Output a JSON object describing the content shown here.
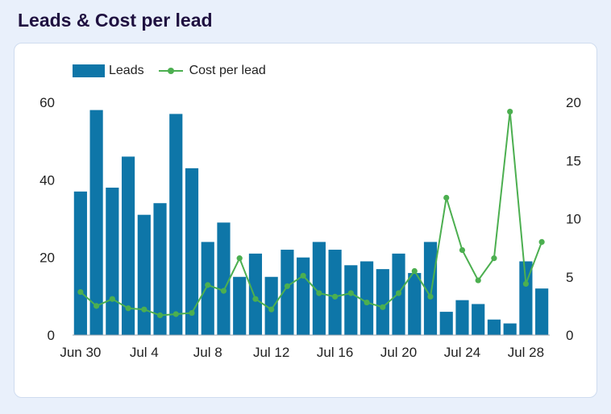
{
  "title": "Leads & Cost per lead",
  "chart_data": {
    "type": "bar+line",
    "categories": [
      "Jun 30",
      "Jul 1",
      "Jul 2",
      "Jul 3",
      "Jul 4",
      "Jul 5",
      "Jul 6",
      "Jul 7",
      "Jul 8",
      "Jul 9",
      "Jul 10",
      "Jul 11",
      "Jul 12",
      "Jul 13",
      "Jul 14",
      "Jul 15",
      "Jul 16",
      "Jul 17",
      "Jul 18",
      "Jul 19",
      "Jul 20",
      "Jul 21",
      "Jul 22",
      "Jul 23",
      "Jul 24",
      "Jul 25",
      "Jul 26",
      "Jul 27",
      "Jul 28",
      "Jul 29"
    ],
    "x_tick_labels": [
      "Jun 30",
      "Jul 4",
      "Jul 8",
      "Jul 12",
      "Jul 16",
      "Jul 20",
      "Jul 24",
      "Jul 28"
    ],
    "x_tick_indices": [
      0,
      4,
      8,
      12,
      16,
      20,
      24,
      28
    ],
    "series": [
      {
        "name": "Leads",
        "type": "bar",
        "axis": "left",
        "color": "#0e76a8",
        "values": [
          37,
          58,
          38,
          46,
          31,
          34,
          57,
          43,
          24,
          29,
          15,
          21,
          15,
          22,
          20,
          24,
          22,
          18,
          19,
          17,
          21,
          16,
          24,
          6,
          9,
          8,
          4,
          3,
          19,
          12
        ]
      },
      {
        "name": "Cost per lead",
        "type": "line",
        "axis": "right",
        "color": "#4caf50",
        "values": [
          3.7,
          2.5,
          3.1,
          2.3,
          2.2,
          1.7,
          1.8,
          1.9,
          4.3,
          3.8,
          6.6,
          3.1,
          2.2,
          4.2,
          5.1,
          3.6,
          3.3,
          3.6,
          2.8,
          2.4,
          3.6,
          5.5,
          3.3,
          11.8,
          7.3,
          4.7,
          6.6,
          19.2,
          4.4,
          8.0
        ]
      }
    ],
    "y_left": {
      "min": 0,
      "max": 60,
      "ticks": [
        0,
        20,
        40,
        60
      ]
    },
    "y_right": {
      "min": 0,
      "max": 20,
      "ticks": [
        0,
        5,
        10,
        15,
        20
      ]
    },
    "legend_position": "top-left"
  },
  "legend": {
    "leads_label": "Leads",
    "cpl_label": "Cost per lead"
  }
}
